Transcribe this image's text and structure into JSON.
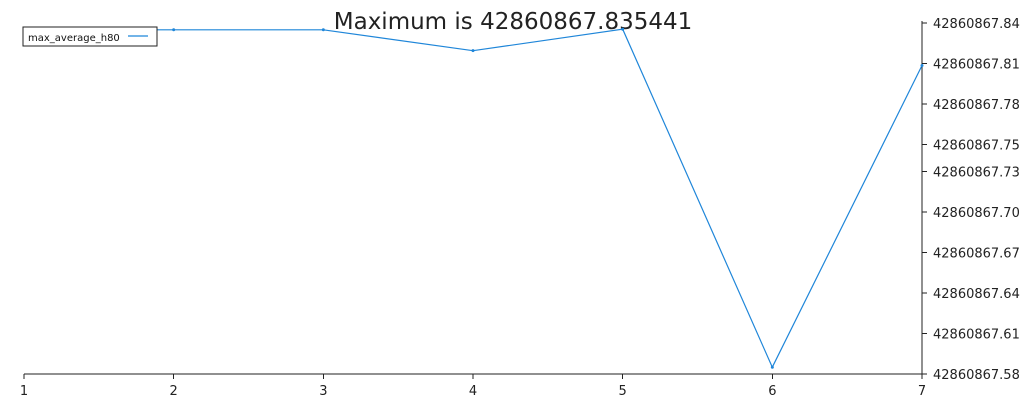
{
  "chart_data": {
    "type": "line",
    "title": "Maximum is 42860867.835441",
    "xlabel": "",
    "ylabel": "",
    "x": [
      1,
      2,
      3,
      4,
      5,
      6,
      7
    ],
    "x_ticks": [
      "1",
      "2",
      "3",
      "4",
      "5",
      "6",
      "7"
    ],
    "y_ticks": [
      "42860867.58",
      "42860867.61",
      "42860867.64",
      "42860867.67",
      "42860867.70",
      "42860867.73",
      "42860867.75",
      "42860867.78",
      "42860867.81",
      "42860867.84"
    ],
    "y_tick_values": [
      42860867.58,
      42860867.61,
      42860867.64,
      42860867.67,
      42860867.7,
      42860867.73,
      42860867.75,
      42860867.78,
      42860867.81,
      42860867.84
    ],
    "xlim": [
      1,
      7
    ],
    "ylim": [
      42860867.58,
      42860867.84
    ],
    "y_axis_side": "right",
    "grid": false,
    "legend_position": "top-left",
    "series": [
      {
        "name": "max_average_h80",
        "color": "#1f86d9",
        "values": [
          42860867.835,
          42860867.835,
          42860867.835,
          42860867.8195,
          42860867.8354,
          42860867.585,
          42860867.8085
        ]
      }
    ]
  }
}
